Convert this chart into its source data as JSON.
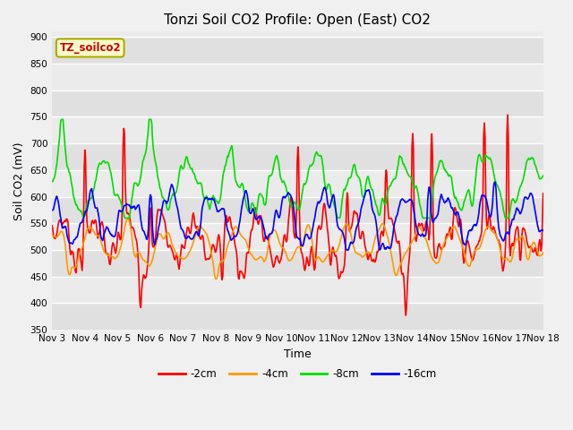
{
  "title": "Tonzi Soil CO2 Profile: Open (East) CO2",
  "ylabel": "Soil CO2 (mV)",
  "xlabel": "Time",
  "annotation": "TZ_soilco2",
  "ylim": [
    350,
    910
  ],
  "yticks": [
    350,
    400,
    450,
    500,
    550,
    600,
    650,
    700,
    750,
    800,
    850,
    900
  ],
  "xtick_labels": [
    "Nov 3",
    "Nov 4",
    "Nov 5",
    "Nov 6",
    "Nov 7",
    "Nov 8",
    "Nov 9",
    "Nov 10",
    "Nov 11",
    "Nov 12",
    "Nov 13",
    "Nov 14",
    "Nov 15",
    "Nov 16",
    "Nov 17",
    "Nov 18"
  ],
  "colors": {
    "-2cm": "#ff0000",
    "-4cm": "#ff9900",
    "-8cm": "#00dd00",
    "-16cm": "#0000ff"
  },
  "legend_labels": [
    "-2cm",
    "-4cm",
    "-8cm",
    "-16cm"
  ],
  "band_colors": [
    "#dcdcdc",
    "#ebebeb"
  ],
  "title_fontsize": 11,
  "axis_label_fontsize": 9,
  "tick_fontsize": 7.5
}
